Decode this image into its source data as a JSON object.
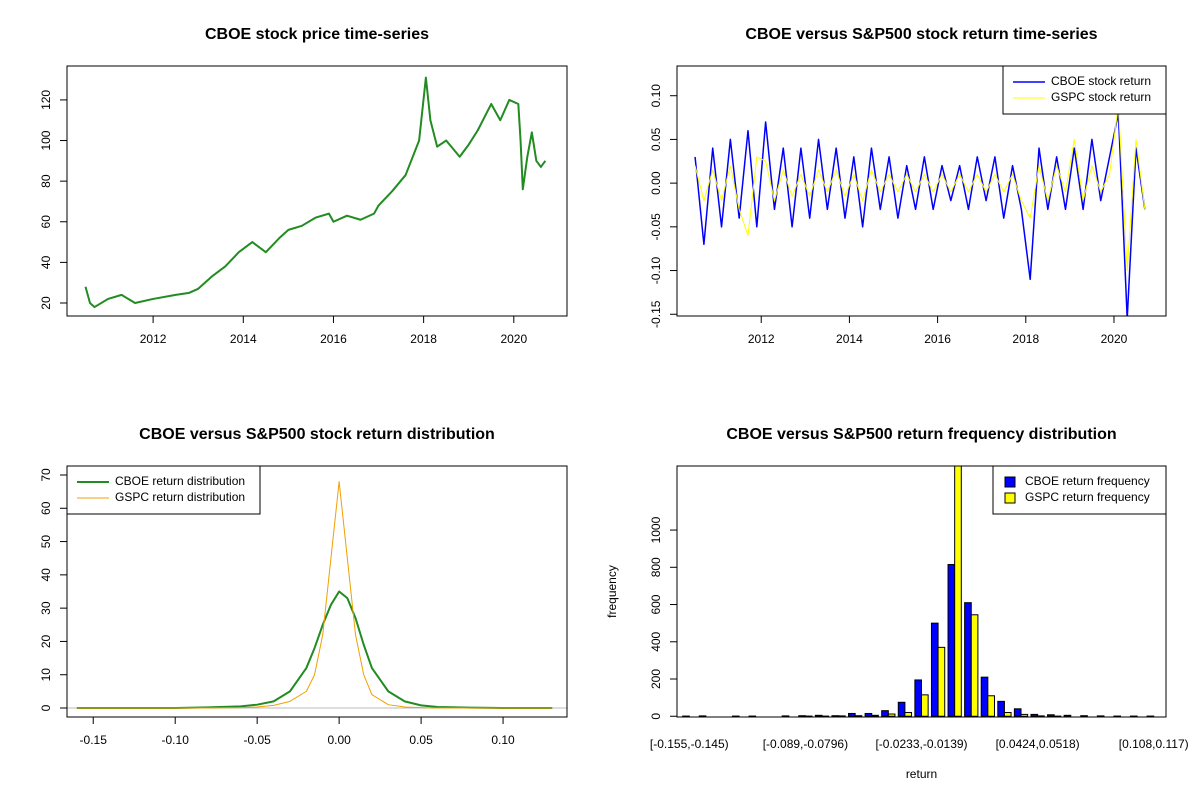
{
  "chart_data": [
    {
      "type": "line",
      "title": "CBOE stock price time-series",
      "x": [
        2010.5,
        2010.6,
        2010.7,
        2011.0,
        2011.3,
        2011.6,
        2012.0,
        2012.5,
        2012.8,
        2013.0,
        2013.3,
        2013.6,
        2013.9,
        2014.2,
        2014.5,
        2014.8,
        2015.0,
        2015.3,
        2015.6,
        2015.9,
        2016.0,
        2016.3,
        2016.6,
        2016.9,
        2017.0,
        2017.3,
        2017.6,
        2017.9,
        2018.05,
        2018.15,
        2018.3,
        2018.5,
        2018.8,
        2019.0,
        2019.2,
        2019.5,
        2019.7,
        2019.9,
        2020.1,
        2020.15,
        2020.2,
        2020.3,
        2020.4,
        2020.5,
        2020.6,
        2020.7
      ],
      "series": [
        {
          "name": "CBOE",
          "color": "#228b22",
          "width": 2,
          "values": [
            28,
            20,
            18,
            22,
            24,
            20,
            22,
            24,
            25,
            27,
            33,
            38,
            45,
            50,
            45,
            52,
            56,
            58,
            62,
            64,
            60,
            63,
            61,
            64,
            68,
            75,
            83,
            100,
            131,
            110,
            97,
            100,
            92,
            98,
            105,
            118,
            110,
            120,
            118,
            100,
            76,
            92,
            104,
            90,
            87,
            90
          ]
        }
      ],
      "xlim": [
        2010.09,
        2021.18
      ],
      "xticks": [
        2012,
        2014,
        2016,
        2018,
        2020
      ],
      "ylim": [
        13.6,
        136.7
      ],
      "yticks": [
        20,
        40,
        60,
        80,
        100,
        120
      ]
    },
    {
      "type": "line",
      "title": "CBOE versus S&P500 stock return time-series",
      "x": [
        2010.5,
        2010.7,
        2010.9,
        2011.1,
        2011.3,
        2011.5,
        2011.7,
        2011.9,
        2012.1,
        2012.3,
        2012.5,
        2012.7,
        2012.9,
        2013.1,
        2013.3,
        2013.5,
        2013.7,
        2013.9,
        2014.1,
        2014.3,
        2014.5,
        2014.7,
        2014.9,
        2015.1,
        2015.3,
        2015.5,
        2015.7,
        2015.9,
        2016.1,
        2016.3,
        2016.5,
        2016.7,
        2016.9,
        2017.1,
        2017.3,
        2017.5,
        2017.7,
        2017.9,
        2018.1,
        2018.3,
        2018.5,
        2018.7,
        2018.9,
        2019.1,
        2019.3,
        2019.5,
        2019.7,
        2019.9,
        2020.1,
        2020.3,
        2020.5,
        2020.7
      ],
      "series": [
        {
          "name": "CBOE stock return",
          "color": "#0000ff",
          "width": 1.5,
          "values": [
            0.03,
            -0.07,
            0.04,
            -0.05,
            0.05,
            -0.04,
            0.06,
            -0.05,
            0.07,
            -0.03,
            0.04,
            -0.05,
            0.04,
            -0.04,
            0.05,
            -0.03,
            0.04,
            -0.04,
            0.03,
            -0.05,
            0.04,
            -0.03,
            0.03,
            -0.04,
            0.02,
            -0.03,
            0.03,
            -0.03,
            0.02,
            -0.02,
            0.02,
            -0.03,
            0.03,
            -0.02,
            0.03,
            -0.04,
            0.02,
            -0.03,
            -0.11,
            0.04,
            -0.03,
            0.03,
            -0.03,
            0.04,
            -0.03,
            0.05,
            -0.02,
            0.03,
            0.08,
            -0.155,
            0.04,
            -0.03
          ]
        },
        {
          "name": "GSPC stock return",
          "color": "#ffff00",
          "width": 1,
          "values": [
            0.02,
            -0.02,
            0.015,
            -0.02,
            0.02,
            -0.03,
            -0.06,
            0.03,
            0.025,
            -0.02,
            0.015,
            -0.015,
            0.01,
            -0.015,
            0.015,
            -0.01,
            0.015,
            -0.015,
            0.01,
            -0.02,
            0.015,
            -0.01,
            0.01,
            -0.01,
            0.01,
            -0.01,
            0.01,
            -0.01,
            0.01,
            -0.01,
            0.01,
            -0.01,
            0.01,
            -0.01,
            0.01,
            -0.01,
            0.01,
            -0.02,
            -0.04,
            0.02,
            -0.02,
            0.02,
            -0.01,
            0.05,
            -0.02,
            0.02,
            -0.01,
            0.01,
            0.09,
            -0.1,
            0.05,
            -0.03
          ]
        }
      ],
      "xlim": [
        2010.09,
        2021.18
      ],
      "xticks": [
        2012,
        2014,
        2016,
        2018,
        2020
      ],
      "ylim": [
        -0.152,
        0.134
      ],
      "yticks": [
        -0.15,
        {
          "value": -0.1,
          "label": "-0.10"
        },
        -0.05,
        {
          "value": 0,
          "label": "0.00"
        },
        0.05,
        {
          "value": 0.1,
          "label": "0.10"
        }
      ],
      "legend": "topright"
    },
    {
      "type": "line",
      "title": "CBOE versus S&P500 stock return distribution",
      "x": [
        -0.16,
        -0.1,
        -0.08,
        -0.06,
        -0.05,
        -0.04,
        -0.03,
        -0.02,
        -0.015,
        -0.01,
        -0.005,
        0,
        0.005,
        0.01,
        0.015,
        0.02,
        0.03,
        0.04,
        0.05,
        0.06,
        0.08,
        0.1,
        0.13
      ],
      "series": [
        {
          "name": "CBOE return distribution",
          "color": "#228b22",
          "width": 2,
          "values": [
            0,
            0,
            0.2,
            0.5,
            1,
            2,
            5,
            12,
            18,
            25,
            31,
            35,
            33,
            27,
            19,
            12,
            5,
            2,
            0.8,
            0.3,
            0.1,
            0,
            0
          ]
        },
        {
          "name": "GSPC return distribution",
          "color": "#f0a000",
          "width": 1,
          "values": [
            0,
            0,
            0,
            0.1,
            0.3,
            0.8,
            2,
            5,
            10,
            22,
            45,
            68,
            45,
            22,
            10,
            4,
            1,
            0.3,
            0.1,
            0,
            0,
            0,
            0
          ]
        }
      ],
      "xlim": [
        -0.166,
        0.139
      ],
      "xticks": [
        -0.15,
        {
          "value": -0.1,
          "label": "-0.10"
        },
        -0.05,
        {
          "value": 0,
          "label": "0.00"
        },
        0.05,
        {
          "value": 0.1,
          "label": "0.10"
        }
      ],
      "ylim": [
        -2.7,
        72.7
      ],
      "yticks": [
        0,
        10,
        20,
        30,
        40,
        50,
        60,
        70
      ],
      "zero_line": true,
      "legend": "topleft"
    },
    {
      "type": "bar",
      "title": "CBOE versus S&P500 return frequency distribution",
      "xlabel": "return",
      "ylabel": "frequency",
      "categories": [
        "[-0.155,-0.145)",
        null,
        null,
        null,
        null,
        null,
        null,
        "[-0.089,-0.0796)",
        null,
        null,
        null,
        null,
        null,
        null,
        "[-0.0233,-0.0139)",
        null,
        null,
        null,
        null,
        null,
        null,
        "[0.0424,0.0518)",
        null,
        null,
        null,
        null,
        null,
        null,
        "[0.108,0.117)"
      ],
      "series": [
        {
          "name": "CBOE return frequency",
          "color": "#0000ff",
          "values": [
            1,
            2,
            0,
            1,
            1,
            0,
            2,
            3,
            5,
            3,
            15,
            15,
            30,
            75,
            195,
            500,
            815,
            610,
            210,
            80,
            40,
            10,
            8,
            5,
            3,
            2,
            1,
            1,
            1
          ]
        },
        {
          "name": "GSPC return frequency",
          "color": "#ffff00",
          "values": [
            0,
            0,
            0,
            0,
            0,
            0,
            0,
            1,
            1,
            2,
            3,
            5,
            12,
            20,
            115,
            370,
            1400,
            545,
            110,
            20,
            10,
            2,
            1,
            0,
            0,
            0,
            0,
            0,
            0
          ]
        }
      ],
      "ylim": [
        -4,
        1344
      ],
      "yticks": [
        0,
        200,
        400,
        600,
        800,
        1000
      ],
      "legend": "topright"
    }
  ]
}
